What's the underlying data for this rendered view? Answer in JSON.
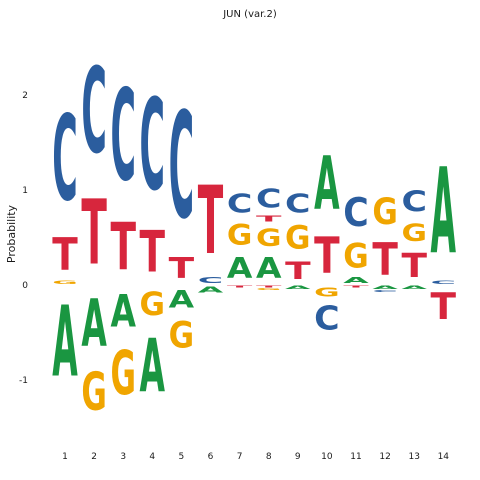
{
  "chart_data": {
    "type": "sequence-logo",
    "title": "JUN (var.2)",
    "xlabel": "",
    "ylabel": "Probability",
    "ylim": [
      -1.5,
      2.6
    ],
    "yticks": [
      -1,
      0,
      1,
      2
    ],
    "grid": false,
    "legend": "none",
    "colors": {
      "A": "#1a9641",
      "C": "#2b5d9e",
      "G": "#f0a500",
      "T": "#d7263d"
    },
    "positions": [
      {
        "label": "1",
        "above": [
          {
            "base": "G",
            "h": 0.05
          },
          {
            "base": "T",
            "h": 0.55
          },
          {
            "base": "C",
            "h": 1.45
          }
        ],
        "below": [
          {
            "base": "A",
            "h": 1.2
          }
        ]
      },
      {
        "label": "2",
        "above": [
          {
            "base": "T",
            "h": 1.1
          },
          {
            "base": "C",
            "h": 1.45
          }
        ],
        "below": [
          {
            "base": "A",
            "h": 0.8
          },
          {
            "base": "G",
            "h": 0.65
          }
        ]
      },
      {
        "label": "3",
        "above": [
          {
            "base": "T",
            "h": 0.8
          },
          {
            "base": "C",
            "h": 1.55
          }
        ],
        "below": [
          {
            "base": "A",
            "h": 0.55
          },
          {
            "base": "G",
            "h": 0.75
          }
        ]
      },
      {
        "label": "4",
        "above": [
          {
            "base": "T",
            "h": 0.7
          },
          {
            "base": "C",
            "h": 1.55
          }
        ],
        "below": [
          {
            "base": "G",
            "h": 0.4
          },
          {
            "base": "A",
            "h": 0.9
          }
        ]
      },
      {
        "label": "5",
        "above": [
          {
            "base": "T",
            "h": 0.35
          },
          {
            "base": "C",
            "h": 1.8
          }
        ],
        "below": [
          {
            "base": "A",
            "h": 0.3
          },
          {
            "base": "G",
            "h": 0.45
          }
        ]
      },
      {
        "label": "6",
        "above": [
          {
            "base": "C",
            "h": 0.1
          },
          {
            "base": "T",
            "h": 1.15
          }
        ],
        "below": [
          {
            "base": "A",
            "h": 0.1
          }
        ]
      },
      {
        "label": "7",
        "above": [
          {
            "base": "A",
            "h": 0.35
          },
          {
            "base": "G",
            "h": 0.35
          },
          {
            "base": "C",
            "h": 0.32
          }
        ],
        "below": [
          {
            "base": "T",
            "h": 0.03
          }
        ]
      },
      {
        "label": "8",
        "above": [
          {
            "base": "A",
            "h": 0.35
          },
          {
            "base": "G",
            "h": 0.3
          },
          {
            "base": "T",
            "h": 0.1
          },
          {
            "base": "C",
            "h": 0.32
          }
        ],
        "below": [
          {
            "base": "T",
            "h": 0.03
          },
          {
            "base": "G",
            "h": 0.03
          }
        ]
      },
      {
        "label": "9",
        "above": [
          {
            "base": "T",
            "h": 0.3
          },
          {
            "base": "G",
            "h": 0.4
          },
          {
            "base": "C",
            "h": 0.32
          }
        ],
        "below": [
          {
            "base": "A",
            "h": 0.05
          }
        ]
      },
      {
        "label": "10",
        "above": [
          {
            "base": "T",
            "h": 0.62
          },
          {
            "base": "A",
            "h": 0.9
          }
        ],
        "below": [
          {
            "base": "G",
            "h": 0.15
          },
          {
            "base": "C",
            "h": 0.4
          }
        ]
      },
      {
        "label": "11",
        "above": [
          {
            "base": "A",
            "h": 0.1
          },
          {
            "base": "G",
            "h": 0.42
          },
          {
            "base": "C",
            "h": 0.48
          }
        ],
        "below": [
          {
            "base": "T",
            "h": 0.03
          }
        ]
      },
      {
        "label": "12",
        "above": [
          {
            "base": "T",
            "h": 0.55
          },
          {
            "base": "G",
            "h": 0.45
          }
        ],
        "below": [
          {
            "base": "A",
            "h": 0.05
          },
          {
            "base": "C",
            "h": 0.03
          }
        ]
      },
      {
        "label": "13",
        "above": [
          {
            "base": "T",
            "h": 0.4
          },
          {
            "base": "G",
            "h": 0.3
          },
          {
            "base": "C",
            "h": 0.35
          }
        ],
        "below": [
          {
            "base": "A",
            "h": 0.05
          }
        ]
      },
      {
        "label": "14",
        "above": [
          {
            "base": "C",
            "h": 0.05
          },
          {
            "base": "A",
            "h": 1.45
          }
        ],
        "below": [
          {
            "base": "T",
            "h": 0.45
          }
        ]
      }
    ]
  }
}
